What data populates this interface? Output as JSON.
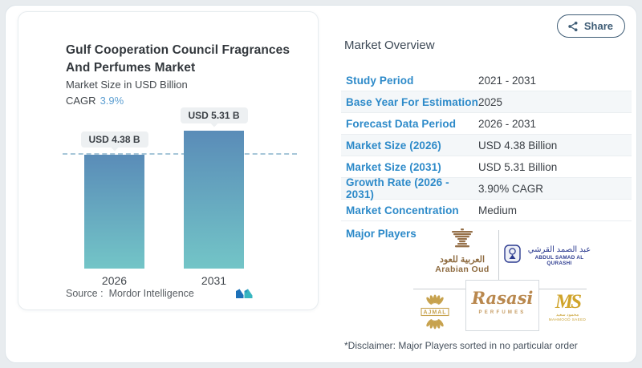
{
  "colors": {
    "accent_blue": "#2d8ac9",
    "bar_gradient_top": "#5a8cb8",
    "bar_gradient_bottom": "#73c5c7",
    "reference_dash": "#a6c6d8",
    "share_button": "#3f5d76",
    "gold": "#c7a24e",
    "brown": "#8d6a3f",
    "navy": "#2b3a8f"
  },
  "left_panel": {
    "title_line1": "Gulf Cooperation Council Fragrances",
    "title_line2": "And Perfumes Market",
    "subtitle": "Market Size in USD Billion",
    "cagr_label": "CAGR",
    "cagr_value": "3.9%",
    "source_label": "Source :",
    "source_value": "Mordor Intelligence"
  },
  "chart_data": {
    "type": "bar",
    "title": "Gulf Cooperation Council Fragrances And Perfumes Market",
    "subtitle": "Market Size in USD Billion",
    "unit": "USD Billion",
    "categories": [
      "2026",
      "2031"
    ],
    "values": [
      4.38,
      5.31
    ],
    "bar_labels": [
      "USD 4.38 B",
      "USD 5.31 B"
    ],
    "cagr": "3.9%",
    "ylim": [
      0,
      6
    ],
    "grid": false,
    "legend": false,
    "reference_line": {
      "value": 4.38,
      "style": "dashed"
    }
  },
  "header": {
    "share_label": "Share",
    "share_icon": "share-nodes-icon"
  },
  "overview": {
    "heading": "Market Overview",
    "rows": [
      {
        "label": "Study Period",
        "value": "2021 - 2031"
      },
      {
        "label": "Base Year For Estimation",
        "value": "2025"
      },
      {
        "label": "Forecast Data Period",
        "value": "2026 - 2031"
      },
      {
        "label": "Market Size (2026)",
        "value": "USD 4.38 Billion"
      },
      {
        "label": "Market Size (2031)",
        "value": "USD 5.31 Billion"
      },
      {
        "label": "Growth Rate (2026 - 2031)",
        "value": "3.90% CAGR"
      },
      {
        "label": "Market Concentration",
        "value": "Medium"
      }
    ],
    "major_players_label": "Major Players",
    "players": [
      {
        "name": "Arabian Oud",
        "arabic": "العربية للعود",
        "english": "Arabian Oud"
      },
      {
        "name": "Abdul Samad Al Qurashi",
        "arabic": "عبد الصمد القرشي",
        "english": "ABDUL SAMAD AL QURASHI"
      },
      {
        "name": "Ajmal",
        "text": "AJMAL"
      },
      {
        "name": "Rasasi Perfumes",
        "script": "Rasasi",
        "sub": "PERFUMES"
      },
      {
        "name": "Mahmood Saeed",
        "monogram": "MS",
        "arabic": "محمود سعيد",
        "english": "MAHMOOD SAEED"
      }
    ],
    "disclaimer": "*Disclaimer: Major Players sorted in no particular order"
  }
}
